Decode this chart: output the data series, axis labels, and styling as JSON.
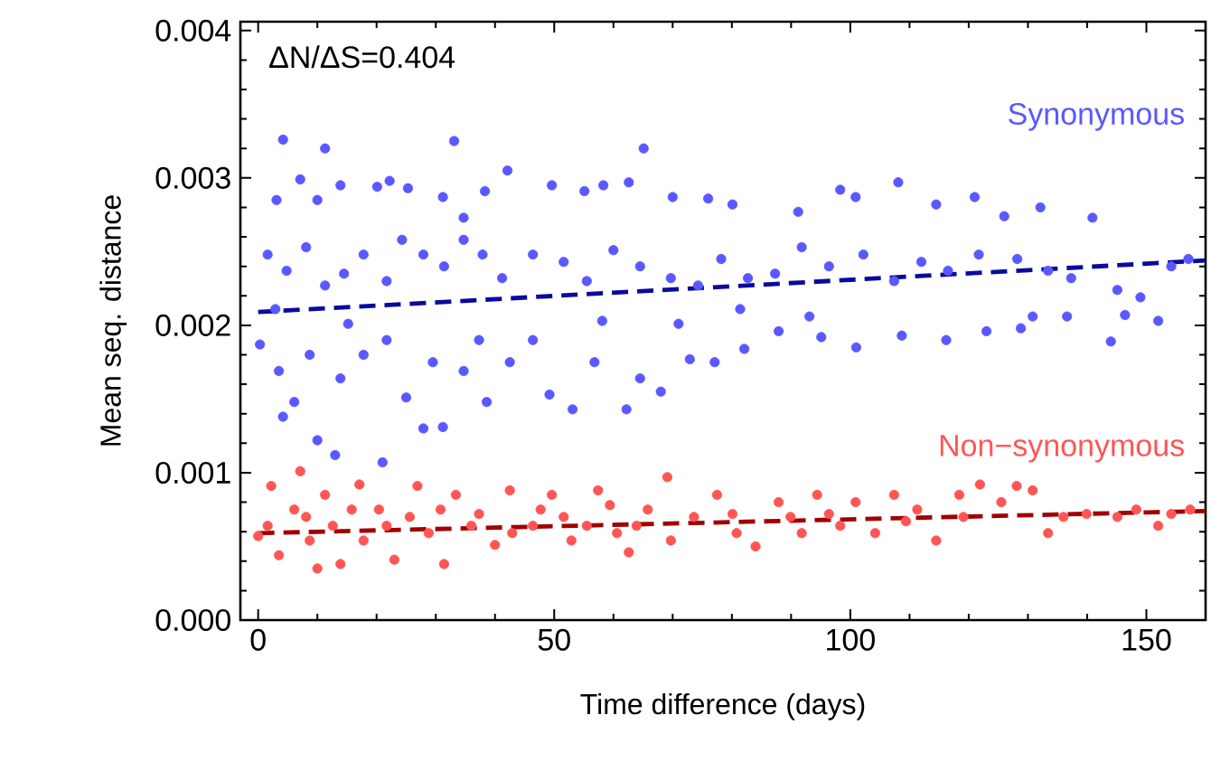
{
  "chart_data": {
    "type": "scatter",
    "xlabel": "Time difference (days)",
    "ylabel": "Mean seq. distance",
    "annotations": [
      "ΔN/ΔS=0.404"
    ],
    "xlim": [
      -3,
      160
    ],
    "ylim": [
      0,
      0.00406
    ],
    "xticks": [
      0,
      50,
      100,
      150
    ],
    "yticks": [
      {
        "value": 0,
        "label": "0.000"
      },
      {
        "value": 0.001,
        "label": "0.001"
      },
      {
        "value": 0.002,
        "label": "0.002"
      },
      {
        "value": 0.003,
        "label": "0.003"
      },
      {
        "value": 0.004,
        "label": "0.004"
      }
    ],
    "series": [
      {
        "name": "Synonymous",
        "marker": "circle",
        "color": "#5959ff",
        "x": [
          4.2,
          11.3,
          33.1,
          65.1,
          3.1,
          7.1,
          10.0,
          13.9,
          20.1,
          22.2,
          25.3,
          31.2,
          34.7,
          38.3,
          42.1,
          49.6,
          55.1,
          58.3,
          62.6,
          70.0,
          76.0,
          80.1,
          91.2,
          98.3,
          100.9,
          108.1,
          114.5,
          121.0,
          126.0,
          132.1,
          140.9,
          1.6,
          4.8,
          8.1,
          11.3,
          14.5,
          17.8,
          21.7,
          24.3,
          27.9,
          31.4,
          34.7,
          37.9,
          41.2,
          46.4,
          51.6,
          55.5,
          60.0,
          64.5,
          69.7,
          74.3,
          78.2,
          82.7,
          87.3,
          91.8,
          96.4,
          102.2,
          107.4,
          112.0,
          116.5,
          121.7,
          128.2,
          133.4,
          137.3,
          145.1,
          149.0,
          154.2,
          157.1,
          0.3,
          3.5,
          4.2,
          6.1,
          10.0,
          13.0,
          21.0,
          8.7,
          13.9,
          17.8,
          21.7,
          25.0,
          27.9,
          31.2,
          29.5,
          34.7,
          38.6,
          42.5,
          46.4,
          49.2,
          53.1,
          56.8,
          62.2,
          64.5,
          68.0,
          72.9,
          77.1,
          82.1,
          87.9,
          95.1,
          101.0,
          108.7,
          116.2,
          123.0,
          128.8,
          136.6,
          144.0,
          146.4,
          152.0,
          130.8,
          93.1,
          71.0,
          37.3,
          15.2,
          2.9,
          58.1,
          81.4
        ],
        "values": [
          0.00326,
          0.0032,
          0.00325,
          0.0032,
          0.00285,
          0.00299,
          0.00285,
          0.00295,
          0.00294,
          0.00298,
          0.00293,
          0.00287,
          0.00273,
          0.00291,
          0.00305,
          0.00295,
          0.00291,
          0.00295,
          0.00297,
          0.00287,
          0.00286,
          0.00282,
          0.00277,
          0.00292,
          0.00287,
          0.00297,
          0.00282,
          0.00287,
          0.00274,
          0.0028,
          0.00273,
          0.00248,
          0.00237,
          0.00253,
          0.00227,
          0.00235,
          0.00248,
          0.0023,
          0.00258,
          0.00248,
          0.0024,
          0.00258,
          0.00248,
          0.00232,
          0.00248,
          0.00243,
          0.0023,
          0.00251,
          0.0024,
          0.00232,
          0.00227,
          0.00245,
          0.00232,
          0.00235,
          0.00253,
          0.0024,
          0.00248,
          0.0023,
          0.00243,
          0.00237,
          0.00248,
          0.00245,
          0.00237,
          0.00232,
          0.00224,
          0.00219,
          0.0024,
          0.00245,
          0.00187,
          0.00169,
          0.00138,
          0.00148,
          0.00122,
          0.00112,
          0.00107,
          0.0018,
          0.00164,
          0.0018,
          0.0019,
          0.00151,
          0.0013,
          0.00131,
          0.00175,
          0.00169,
          0.00148,
          0.00175,
          0.0019,
          0.00153,
          0.00143,
          0.00175,
          0.00143,
          0.00164,
          0.00155,
          0.00177,
          0.00175,
          0.00184,
          0.00196,
          0.00192,
          0.00185,
          0.00193,
          0.0019,
          0.00196,
          0.00198,
          0.00206,
          0.00189,
          0.00207,
          0.00203,
          0.00206,
          0.00206,
          0.00201,
          0.0019,
          0.00201,
          0.00211,
          0.00203,
          0.00211
        ]
      },
      {
        "name": "Non−synonymous",
        "marker": "circle",
        "color": "#ff5555",
        "x": [
          7.1,
          0.0,
          2.2,
          3.5,
          6.1,
          8.7,
          10.0,
          11.3,
          13.9,
          17.1,
          17.8,
          20.4,
          23.0,
          26.9,
          28.8,
          31.4,
          33.4,
          36.0,
          40.0,
          42.5,
          46.4,
          49.6,
          52.9,
          57.4,
          60.6,
          62.6,
          65.8,
          69.1,
          69.7,
          73.6,
          77.5,
          80.8,
          84.0,
          87.9,
          91.8,
          94.4,
          98.3,
          100.9,
          104.2,
          107.4,
          111.3,
          114.5,
          118.4,
          121.9,
          125.5,
          128.1,
          130.8,
          133.4,
          136.0,
          139.9,
          145.1,
          148.3,
          152.0,
          154.2,
          157.4,
          1.6,
          8.1,
          12.6,
          15.8,
          21.7,
          25.6,
          30.8,
          37.3,
          42.9,
          47.7,
          51.6,
          55.5,
          59.4,
          63.9,
          80.1,
          89.9,
          96.4,
          109.4,
          119.1
        ],
        "values": [
          0.00101,
          0.00057,
          0.00091,
          0.00044,
          0.00075,
          0.00054,
          0.00035,
          0.00085,
          0.00038,
          0.00092,
          0.00054,
          0.00075,
          0.00041,
          0.00091,
          0.00059,
          0.00038,
          0.00085,
          0.00064,
          0.00051,
          0.00088,
          0.00064,
          0.00085,
          0.00054,
          0.00088,
          0.00059,
          0.00046,
          0.00075,
          0.00097,
          0.00054,
          0.0007,
          0.00085,
          0.00059,
          0.0005,
          0.0008,
          0.00059,
          0.00085,
          0.00064,
          0.0008,
          0.00059,
          0.00085,
          0.00075,
          0.00054,
          0.00085,
          0.00092,
          0.0008,
          0.00091,
          0.00088,
          0.00059,
          0.0007,
          0.00072,
          0.0007,
          0.00075,
          0.00064,
          0.00072,
          0.00075,
          0.00064,
          0.0007,
          0.00064,
          0.00075,
          0.00064,
          0.0007,
          0.00075,
          0.00072,
          0.00059,
          0.00075,
          0.0007,
          0.00064,
          0.00078,
          0.00064,
          0.00072,
          0.0007,
          0.00072,
          0.00067,
          0.0007
        ]
      },
      {
        "type": "line",
        "marker": "none",
        "color": "#0a0a9e",
        "line_style": "dashed",
        "x": [
          0,
          160
        ],
        "values": [
          0.00209,
          0.00244
        ]
      },
      {
        "type": "line",
        "marker": "none",
        "color": "#a00000",
        "line_style": "dashed",
        "x": [
          0,
          160
        ],
        "values": [
          0.00059,
          0.00074
        ]
      }
    ]
  }
}
